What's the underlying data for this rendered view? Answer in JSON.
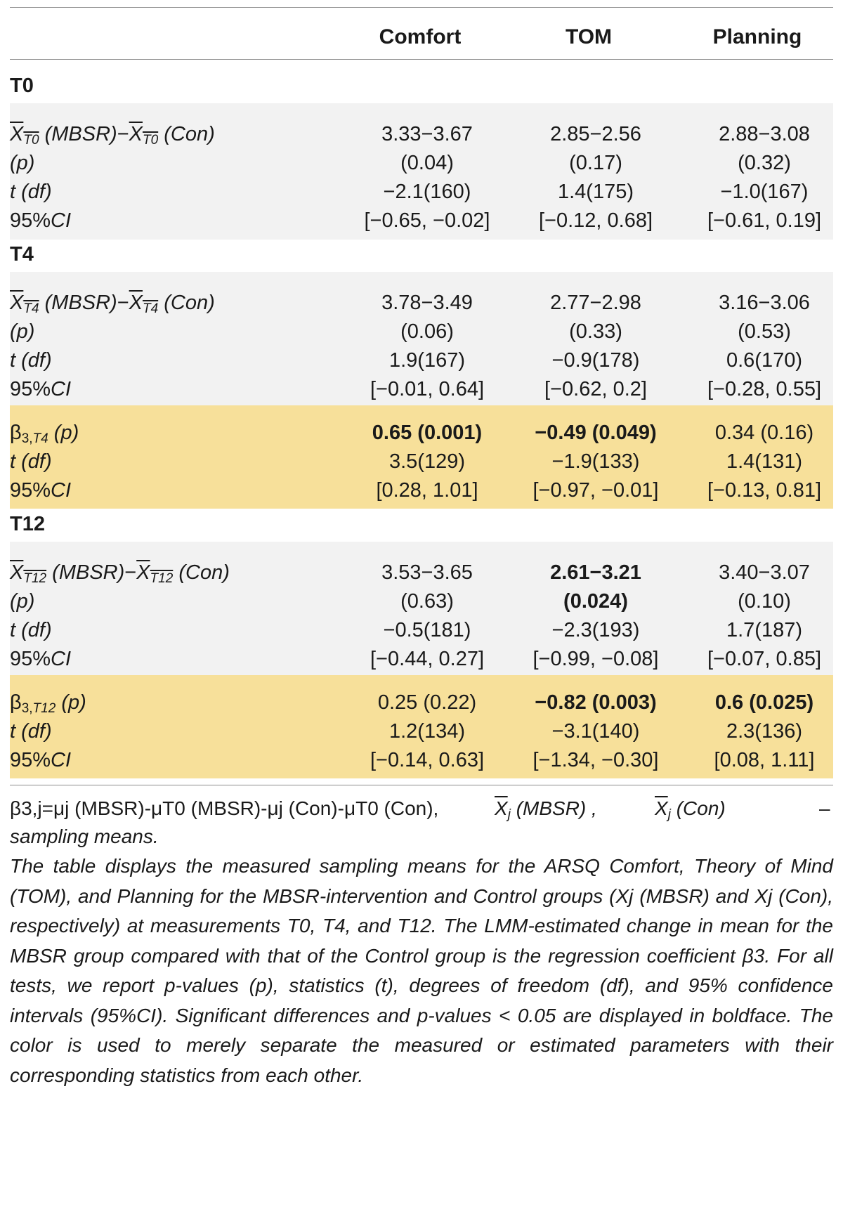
{
  "columns": [
    "Comfort",
    "TOM",
    "Planning"
  ],
  "sections": {
    "t0": "T0",
    "t4": "T4",
    "t12": "T12"
  },
  "row_labels": {
    "p": "(p)",
    "t_df": "t (df)",
    "ci": "95%CI",
    "diff_mbsr": "(MBSR)",
    "diff_con": "(Con)",
    "beta_p": "(p)"
  },
  "t0": {
    "means": [
      "3.33−3.67",
      "2.85−2.56",
      "2.88−3.08"
    ],
    "p": [
      "(0.04)",
      "(0.17)",
      "(0.32)"
    ],
    "t_df": [
      "−2.1(160)",
      "1.4(175)",
      "−1.0(167)"
    ],
    "ci": [
      "[−0.65, −0.02]",
      "[−0.12, 0.68]",
      "[−0.61, 0.19]"
    ]
  },
  "t4": {
    "means": [
      "3.78−3.49",
      "2.77−2.98",
      "3.16−3.06"
    ],
    "p": [
      "(0.06)",
      "(0.33)",
      "(0.53)"
    ],
    "t_df": [
      "1.9(167)",
      "−0.9(178)",
      "0.6(170)"
    ],
    "ci": [
      "[−0.01, 0.64]",
      "[−0.62, 0.2]",
      "[−0.28, 0.55]"
    ]
  },
  "beta_t4": {
    "beta_p": [
      "0.65 (0.001)",
      "−0.49 (0.049)",
      "0.34 (0.16)"
    ],
    "t_df": [
      "3.5(129)",
      "−1.9(133)",
      "1.4(131)"
    ],
    "ci": [
      "[0.28, 1.01]",
      "[−0.97, −0.01]",
      "[−0.13, 0.81]"
    ]
  },
  "t12": {
    "means": [
      "3.53−3.65",
      "2.61−3.21",
      "3.40−3.07"
    ],
    "p": [
      "(0.63)",
      "(0.024)",
      "(0.10)"
    ],
    "t_df": [
      "−0.5(181)",
      "−2.3(193)",
      "1.7(187)"
    ],
    "ci": [
      "[−0.44, 0.27]",
      "[−0.99, −0.08]",
      "[−0.07, 0.85]"
    ]
  },
  "beta_t12": {
    "beta_p": [
      "0.25 (0.22)",
      "−0.82 (0.003)",
      "0.6 (0.025)"
    ],
    "t_df": [
      "1.2(134)",
      "−3.1(140)",
      "2.3(136)"
    ],
    "ci": [
      "[−0.14, 0.63]",
      "[−1.34, −0.30]",
      "[0.08, 1.11]"
    ]
  },
  "bold_cells": {
    "t0_means": [
      true,
      false,
      false
    ],
    "t0_p": [
      true,
      false,
      false
    ],
    "t12_means": [
      false,
      true,
      false
    ],
    "t12_p": [
      false,
      true,
      false
    ],
    "beta_t4": [
      true,
      true,
      false
    ],
    "beta_t12": [
      false,
      true,
      true
    ]
  },
  "footnote": {
    "formula": "β3,j=μj (MBSR)-μT0 (MBSR)-μj (Con)-μT0 (Con),",
    "means_mbsr": "(MBSR) ,",
    "means_con": "(Con)",
    "dash": "–",
    "sampling": "sampling means.",
    "paragraph": "The table displays the measured sampling means for the ARSQ Comfort, Theory of Mind (TOM), and Planning for the MBSR-intervention and Control groups (Xj (MBSR) and Xj (Con), respectively) at measurements T0, T4, and T12. The LMM-estimated change in mean for the MBSR group compared with that of the Control group is the regression coefficient β3. For all tests, we report p-values (p), statistics (t), degrees of freedom (df), and 95% confidence intervals (95%CI). Significant differences and p-values < 0.05 are displayed in boldface. The color is used to merely separate the measured or estimated parameters with their corresponding statistics from each other."
  },
  "colors": {
    "gray_band": "#f2f2f2",
    "yellow_band": "#f7e09a",
    "rule": "#8c8c8c"
  }
}
